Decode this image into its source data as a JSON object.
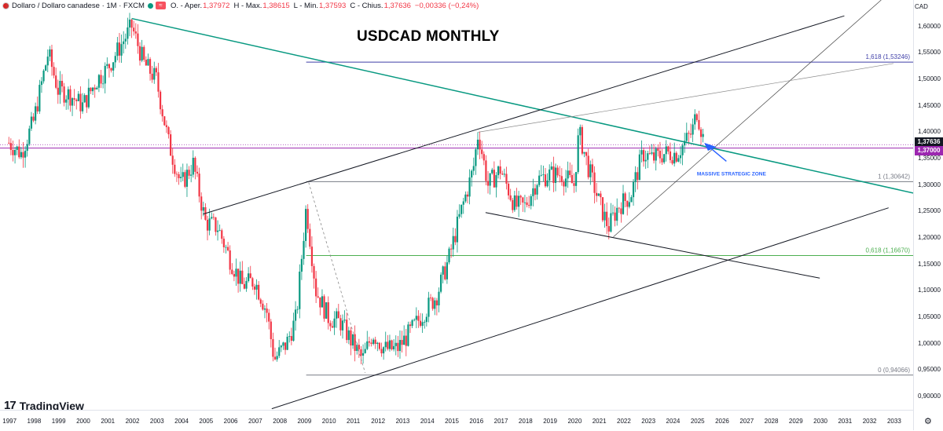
{
  "legend": {
    "symbol": "Dollaro / Dollaro canadese · 1M · FXCM",
    "wave_badge": "≈",
    "open_label": "O. - Aper.",
    "open_value": "1,37972",
    "high_label": "H - Max.",
    "high_value": "1,38615",
    "low_label": "L - Min.",
    "low_value": "1,37593",
    "close_label": "C - Chius.",
    "close_value": "1,37636",
    "change": "−0,00336 (−0,24%)"
  },
  "title": "USDCAD MONTHLY",
  "logo": "TradingView",
  "logo_mark": "17",
  "currency": "CAD",
  "colors": {
    "up": "#089981",
    "down": "#f23645",
    "trend": "#089981",
    "price_badge": "#131722",
    "level_badge": "#9c27b0"
  },
  "chart_data": {
    "type": "candlestick",
    "title": "USDCAD MONTHLY",
    "xlim": [
      1996.8,
      2033.8
    ],
    "ylim": [
      0.875,
      1.65
    ],
    "y_ticks": [
      "0,90000",
      "0,95000",
      "1,00000",
      "1,05000",
      "1,10000",
      "1,15000",
      "1,20000",
      "1,25000",
      "1,30000",
      "1,35000",
      "1,40000",
      "1,45000",
      "1,50000",
      "1,55000",
      "1,60000"
    ],
    "x_ticks": [
      "1997",
      "1998",
      "1999",
      "2000",
      "2001",
      "2002",
      "2003",
      "2004",
      "2005",
      "2006",
      "2007",
      "2008",
      "2009",
      "2010",
      "2011",
      "2012",
      "2013",
      "2014",
      "2015",
      "2016",
      "2017",
      "2018",
      "2019",
      "2020",
      "2021",
      "2022",
      "2023",
      "2024",
      "2025",
      "2026",
      "2027",
      "2028",
      "2029",
      "2030",
      "2031",
      "2032",
      "2033"
    ],
    "price_path": [
      [
        1997.0,
        1.38
      ],
      [
        1997.5,
        1.36
      ],
      [
        1998.0,
        1.42
      ],
      [
        1998.6,
        1.55
      ],
      [
        1999.0,
        1.48
      ],
      [
        1999.5,
        1.47
      ],
      [
        2000.0,
        1.45
      ],
      [
        2000.6,
        1.5
      ],
      [
        2001.0,
        1.52
      ],
      [
        2001.5,
        1.56
      ],
      [
        2002.0,
        1.6
      ],
      [
        2002.5,
        1.53
      ],
      [
        2003.0,
        1.5
      ],
      [
        2003.5,
        1.38
      ],
      [
        2004.0,
        1.3
      ],
      [
        2004.5,
        1.34
      ],
      [
        2005.0,
        1.23
      ],
      [
        2005.5,
        1.22
      ],
      [
        2006.0,
        1.16
      ],
      [
        2006.5,
        1.11
      ],
      [
        2007.0,
        1.12
      ],
      [
        2007.5,
        1.06
      ],
      [
        2007.8,
        0.97
      ],
      [
        2008.3,
        1.0
      ],
      [
        2008.7,
        1.05
      ],
      [
        2009.1,
        1.26
      ],
      [
        2009.5,
        1.1
      ],
      [
        2010.0,
        1.05
      ],
      [
        2010.5,
        1.04
      ],
      [
        2011.0,
        1.0
      ],
      [
        2011.4,
        0.97
      ],
      [
        2011.8,
        1.02
      ],
      [
        2012.3,
        0.99
      ],
      [
        2012.8,
        0.99
      ],
      [
        2013.3,
        1.02
      ],
      [
        2013.9,
        1.06
      ],
      [
        2014.4,
        1.09
      ],
      [
        2014.9,
        1.16
      ],
      [
        2015.4,
        1.25
      ],
      [
        2015.9,
        1.33
      ],
      [
        2016.1,
        1.4
      ],
      [
        2016.5,
        1.3
      ],
      [
        2017.0,
        1.33
      ],
      [
        2017.6,
        1.26
      ],
      [
        2018.0,
        1.26
      ],
      [
        2018.5,
        1.31
      ],
      [
        2019.0,
        1.32
      ],
      [
        2019.5,
        1.32
      ],
      [
        2020.0,
        1.3
      ],
      [
        2020.2,
        1.4
      ],
      [
        2020.6,
        1.33
      ],
      [
        2021.0,
        1.27
      ],
      [
        2021.4,
        1.22
      ],
      [
        2021.8,
        1.26
      ],
      [
        2022.3,
        1.28
      ],
      [
        2022.8,
        1.36
      ],
      [
        2023.2,
        1.35
      ],
      [
        2023.7,
        1.36
      ],
      [
        2024.2,
        1.36
      ],
      [
        2024.8,
        1.4
      ],
      [
        2025.0,
        1.44
      ],
      [
        2025.3,
        1.38
      ]
    ],
    "levels": [
      {
        "name": "1,618 (1,53246)",
        "value": 1.53246,
        "color": "#3f3fa8"
      },
      {
        "name": "1 (1,30642)",
        "value": 1.30642,
        "color": "#787b86"
      },
      {
        "name": "0,618 (1,16670)",
        "value": 1.1667,
        "color": "#4caf50"
      },
      {
        "name": "0 (0,94066)",
        "value": 0.94066,
        "color": "#787b86"
      },
      {
        "name": "1,37000",
        "value": 1.37,
        "color": "#9c27b0"
      }
    ],
    "last_price": "1,37636",
    "annotation": "MASSIVE STRATEGIC ZONE"
  }
}
